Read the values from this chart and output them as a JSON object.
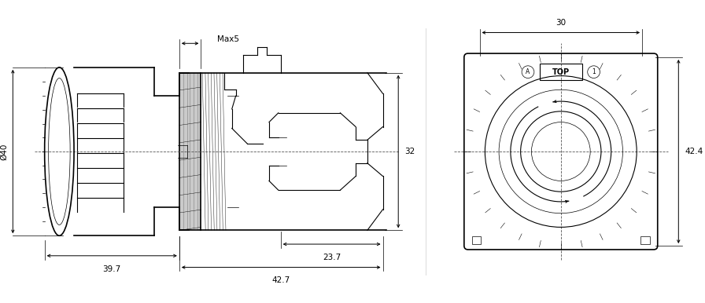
{
  "bg_color": "#ffffff",
  "line_color": "#000000",
  "dim_color": "#000000",
  "centerline_color": "#555555",
  "fig_width": 8.96,
  "fig_height": 3.86,
  "dpi": 100,
  "annotations": {
    "max5": "Max5",
    "phi40": "Ø40",
    "dim32": "32",
    "dim39_7": "39.7",
    "dim42_7": "42.7",
    "dim23_7": "23.7",
    "dim30": "30",
    "dim42_4": "42.4",
    "top_label": "TOP"
  }
}
